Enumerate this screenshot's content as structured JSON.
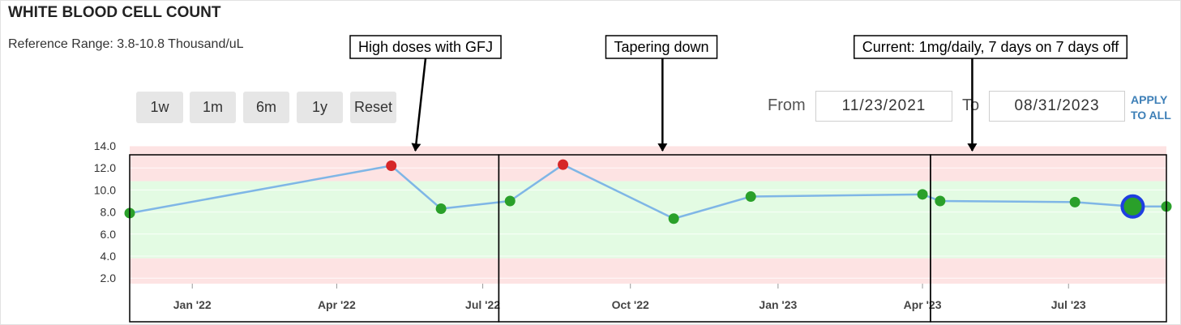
{
  "header": {
    "title": "WHITE BLOOD CELL COUNT",
    "reference_range": "Reference Range: 3.8-10.8 Thousand/uL"
  },
  "controls": {
    "range_buttons": [
      "1w",
      "1m",
      "6m",
      "1y",
      "Reset"
    ],
    "from_label": "From",
    "from_value": "11/23/2021",
    "to_label": "To",
    "to_value": "08/31/2023",
    "apply_line1": "APPLY",
    "apply_line2": "TO ALL"
  },
  "colors": {
    "line": "#7fb6e6",
    "point_normal": "#2aa02a",
    "point_high": "#d62728",
    "band_high": "#fde3e3",
    "band_normal": "#e3fbe3",
    "band_low": "#fde3e3",
    "selected_ring": "#1f3fe0"
  },
  "chart_data": {
    "type": "line",
    "title": "WHITE BLOOD CELL COUNT",
    "xlabel": "",
    "ylabel": "",
    "x_range": [
      "2021-11-23",
      "2023-08-31"
    ],
    "ylim": [
      1.5,
      14
    ],
    "yticks": [
      14.0,
      12.0,
      10.0,
      8.0,
      6.0,
      4.0,
      2.0
    ],
    "reference_range": [
      3.8,
      10.8
    ],
    "xticks": [
      {
        "date": "2022-01-01",
        "label": "Jan '22"
      },
      {
        "date": "2022-04-01",
        "label": "Apr '22"
      },
      {
        "date": "2022-07-01",
        "label": "Jul '22"
      },
      {
        "date": "2022-10-01",
        "label": "Oct '22"
      },
      {
        "date": "2023-01-01",
        "label": "Jan '23"
      },
      {
        "date": "2023-04-01",
        "label": "Apr '23"
      },
      {
        "date": "2023-07-01",
        "label": "Jul '23"
      }
    ],
    "points": [
      {
        "date": "2021-11-23",
        "value": 7.9,
        "status": "normal"
      },
      {
        "date": "2022-05-05",
        "value": 12.2,
        "status": "high"
      },
      {
        "date": "2022-06-05",
        "value": 8.3,
        "status": "normal"
      },
      {
        "date": "2022-07-18",
        "value": 9.0,
        "status": "normal"
      },
      {
        "date": "2022-08-20",
        "value": 12.3,
        "status": "high"
      },
      {
        "date": "2022-10-28",
        "value": 7.4,
        "status": "normal"
      },
      {
        "date": "2022-12-15",
        "value": 9.4,
        "status": "normal"
      },
      {
        "date": "2023-04-01",
        "value": 9.6,
        "status": "normal"
      },
      {
        "date": "2023-04-12",
        "value": 9.0,
        "status": "normal"
      },
      {
        "date": "2023-07-05",
        "value": 8.9,
        "status": "normal"
      },
      {
        "date": "2023-08-10",
        "value": 8.5,
        "status": "normal",
        "selected": true
      },
      {
        "date": "2023-08-31",
        "value": 8.5,
        "status": "normal"
      }
    ],
    "annotations": [
      {
        "text": "High doses with GFJ",
        "start": "2021-11-23",
        "end": "2022-07-11",
        "arrow_date": "2022-05-20"
      },
      {
        "text": "Tapering down",
        "start": "2022-07-11",
        "end": "2023-04-06",
        "arrow_date": "2022-10-21"
      },
      {
        "text": "Current: 1mg/daily, 7 days on 7 days off",
        "start": "2023-04-06",
        "end": "2023-08-31",
        "arrow_date": "2023-05-02"
      }
    ]
  }
}
